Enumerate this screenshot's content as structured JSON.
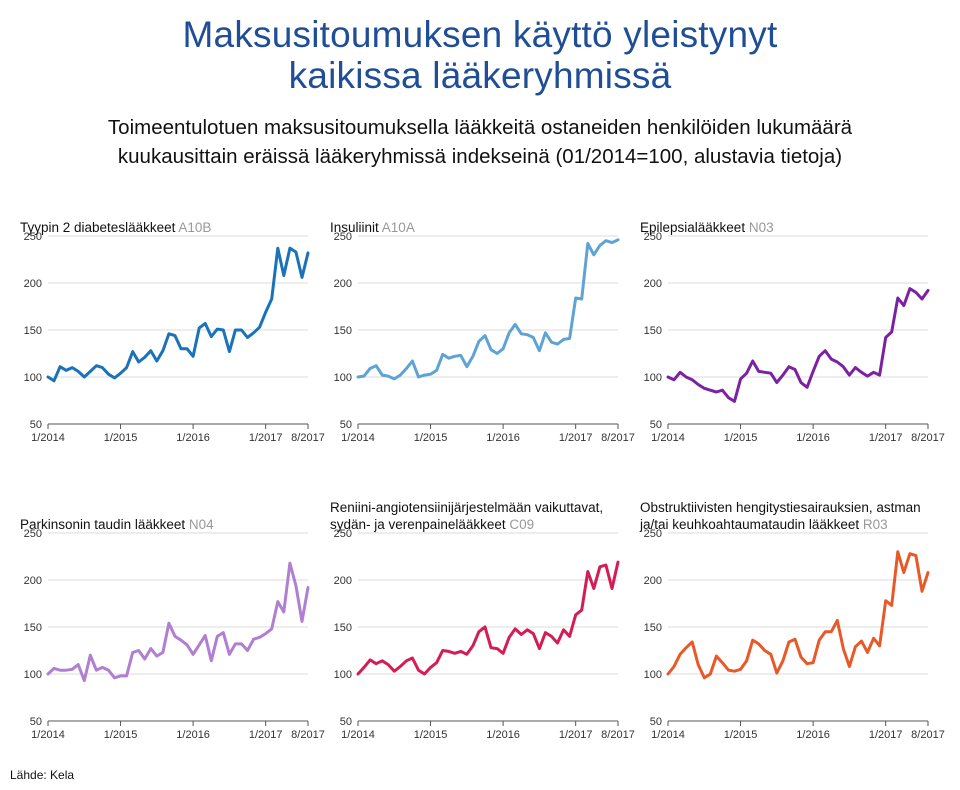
{
  "title": {
    "line1": "Maksusitoumuksen käyttö yleistynyt",
    "line2": "kaikissa lääkeryhmissä"
  },
  "subtitle": {
    "line1": "Toimeentulotuen maksusitoumuksella lääkkeitä ostaneiden henkilöiden lukumäärä",
    "line2": "kuukausittain eräissä lääkeryhmissä indekseinä (01/2014=100, alustavia tietoja)"
  },
  "source": "Lähde: Kela",
  "chart_data": [
    {
      "type": "line",
      "title": "Tyypin 2 diabeteslääkkeet",
      "code": "A10B",
      "color": "#1a72b8",
      "ylim": [
        50,
        250
      ],
      "yticks": [
        50,
        100,
        150,
        200,
        250
      ],
      "xticks": [
        "1/2014",
        "1/2015",
        "1/2016",
        "1/2017",
        "8/2017"
      ],
      "x": [
        "1/2014",
        "2/2014",
        "3/2014",
        "4/2014",
        "5/2014",
        "6/2014",
        "7/2014",
        "8/2014",
        "9/2014",
        "10/2014",
        "11/2014",
        "12/2014",
        "1/2015",
        "2/2015",
        "3/2015",
        "4/2015",
        "5/2015",
        "6/2015",
        "7/2015",
        "8/2015",
        "9/2015",
        "10/2015",
        "11/2015",
        "12/2015",
        "1/2016",
        "2/2016",
        "3/2016",
        "4/2016",
        "5/2016",
        "6/2016",
        "7/2016",
        "8/2016",
        "9/2016",
        "10/2016",
        "11/2016",
        "12/2016",
        "1/2017",
        "2/2017",
        "3/2017",
        "4/2017",
        "5/2017",
        "6/2017",
        "7/2017",
        "8/2017"
      ],
      "values": [
        100,
        96,
        111,
        107,
        110,
        106,
        100,
        106,
        112,
        110,
        103,
        99,
        104,
        110,
        127,
        116,
        121,
        128,
        117,
        128,
        146,
        144,
        130,
        130,
        122,
        152,
        157,
        143,
        151,
        150,
        127,
        150,
        150,
        142,
        147,
        153,
        169,
        183,
        237,
        208,
        237,
        233,
        206,
        232
      ]
    },
    {
      "type": "line",
      "title": "Insuliinit",
      "code": "A10A",
      "color": "#5fa3d3",
      "ylim": [
        50,
        250
      ],
      "yticks": [
        50,
        100,
        150,
        200,
        250
      ],
      "xticks": [
        "1/2014",
        "1/2015",
        "1/2016",
        "1/2017",
        "8/2017"
      ],
      "x": [
        "1/2014",
        "2/2014",
        "3/2014",
        "4/2014",
        "5/2014",
        "6/2014",
        "7/2014",
        "8/2014",
        "9/2014",
        "10/2014",
        "11/2014",
        "12/2014",
        "1/2015",
        "2/2015",
        "3/2015",
        "4/2015",
        "5/2015",
        "6/2015",
        "7/2015",
        "8/2015",
        "9/2015",
        "10/2015",
        "11/2015",
        "12/2015",
        "1/2016",
        "2/2016",
        "3/2016",
        "4/2016",
        "5/2016",
        "6/2016",
        "7/2016",
        "8/2016",
        "9/2016",
        "10/2016",
        "11/2016",
        "12/2016",
        "1/2017",
        "2/2017",
        "3/2017",
        "4/2017",
        "5/2017",
        "6/2017",
        "7/2017",
        "8/2017"
      ],
      "values": [
        100,
        101,
        109,
        112,
        102,
        101,
        98,
        102,
        109,
        117,
        100,
        102,
        103,
        107,
        124,
        120,
        122,
        123,
        111,
        122,
        138,
        144,
        129,
        125,
        130,
        147,
        156,
        146,
        145,
        142,
        128,
        147,
        137,
        135,
        140,
        141,
        184,
        183,
        242,
        230,
        240,
        245,
        243,
        246
      ]
    },
    {
      "type": "line",
      "title": "Epilepsialääkkeet",
      "code": "N03",
      "color": "#7b22a3",
      "ylim": [
        50,
        250
      ],
      "yticks": [
        50,
        100,
        150,
        200,
        250
      ],
      "xticks": [
        "1/2014",
        "1/2015",
        "1/2016",
        "1/2017",
        "8/2017"
      ],
      "x": [
        "1/2014",
        "2/2014",
        "3/2014",
        "4/2014",
        "5/2014",
        "6/2014",
        "7/2014",
        "8/2014",
        "9/2014",
        "10/2014",
        "11/2014",
        "12/2014",
        "1/2015",
        "2/2015",
        "3/2015",
        "4/2015",
        "5/2015",
        "6/2015",
        "7/2015",
        "8/2015",
        "9/2015",
        "10/2015",
        "11/2015",
        "12/2015",
        "1/2016",
        "2/2016",
        "3/2016",
        "4/2016",
        "5/2016",
        "6/2016",
        "7/2016",
        "8/2016",
        "9/2016",
        "10/2016",
        "11/2016",
        "12/2016",
        "1/2017",
        "2/2017",
        "3/2017",
        "4/2017",
        "5/2017",
        "6/2017",
        "7/2017",
        "8/2017"
      ],
      "values": [
        100,
        97,
        105,
        100,
        97,
        92,
        88,
        86,
        84,
        86,
        78,
        74,
        98,
        104,
        117,
        106,
        105,
        104,
        94,
        102,
        111,
        108,
        94,
        89,
        106,
        122,
        128,
        119,
        116,
        111,
        102,
        110,
        105,
        101,
        105,
        102,
        142,
        148,
        184,
        176,
        194,
        190,
        183,
        192
      ]
    },
    {
      "type": "line",
      "title": "Parkinsonin taudin lääkkeet",
      "code": "N04",
      "color": "#b07fd0",
      "ylim": [
        50,
        250
      ],
      "yticks": [
        50,
        100,
        150,
        200,
        250
      ],
      "xticks": [
        "1/2014",
        "1/2015",
        "1/2016",
        "1/2017",
        "8/2017"
      ],
      "x": [
        "1/2014",
        "2/2014",
        "3/2014",
        "4/2014",
        "5/2014",
        "6/2014",
        "7/2014",
        "8/2014",
        "9/2014",
        "10/2014",
        "11/2014",
        "12/2014",
        "1/2015",
        "2/2015",
        "3/2015",
        "4/2015",
        "5/2015",
        "6/2015",
        "7/2015",
        "8/2015",
        "9/2015",
        "10/2015",
        "11/2015",
        "12/2015",
        "1/2016",
        "2/2016",
        "3/2016",
        "4/2016",
        "5/2016",
        "6/2016",
        "7/2016",
        "8/2016",
        "9/2016",
        "10/2016",
        "11/2016",
        "12/2016",
        "1/2017",
        "2/2017",
        "3/2017",
        "4/2017",
        "5/2017",
        "6/2017",
        "7/2017",
        "8/2017"
      ],
      "values": [
        100,
        106,
        104,
        104,
        105,
        110,
        93,
        120,
        104,
        107,
        104,
        96,
        98,
        98,
        123,
        125,
        116,
        127,
        119,
        123,
        154,
        140,
        136,
        131,
        121,
        131,
        141,
        114,
        140,
        144,
        121,
        132,
        132,
        125,
        137,
        139,
        143,
        148,
        177,
        166,
        218,
        194,
        156,
        192
      ]
    },
    {
      "type": "line",
      "title": "Reniini-angiotensiinijärjestelmään vaikuttavat, sydän- ja verenpainelääkkeet",
      "title_lines": [
        "Reniini-angiotensiinijärjestelmään vaikuttavat,",
        "sydän- ja verenpainelääkkeet"
      ],
      "code": "C09",
      "color": "#d41c55",
      "ylim": [
        50,
        250
      ],
      "yticks": [
        50,
        100,
        150,
        200,
        250
      ],
      "xticks": [
        "1/2014",
        "1/2015",
        "1/2016",
        "1/2017",
        "8/2017"
      ],
      "x": [
        "1/2014",
        "2/2014",
        "3/2014",
        "4/2014",
        "5/2014",
        "6/2014",
        "7/2014",
        "8/2014",
        "9/2014",
        "10/2014",
        "11/2014",
        "12/2014",
        "1/2015",
        "2/2015",
        "3/2015",
        "4/2015",
        "5/2015",
        "6/2015",
        "7/2015",
        "8/2015",
        "9/2015",
        "10/2015",
        "11/2015",
        "12/2015",
        "1/2016",
        "2/2016",
        "3/2016",
        "4/2016",
        "5/2016",
        "6/2016",
        "7/2016",
        "8/2016",
        "9/2016",
        "10/2016",
        "11/2016",
        "12/2016",
        "1/2017",
        "2/2017",
        "3/2017",
        "4/2017",
        "5/2017",
        "6/2017",
        "7/2017",
        "8/2017"
      ],
      "values": [
        100,
        107,
        115,
        111,
        114,
        110,
        103,
        108,
        114,
        117,
        104,
        100,
        107,
        112,
        125,
        124,
        122,
        124,
        121,
        130,
        145,
        150,
        128,
        127,
        122,
        139,
        148,
        142,
        147,
        143,
        127,
        144,
        140,
        133,
        147,
        140,
        163,
        168,
        209,
        191,
        214,
        216,
        191,
        219
      ]
    },
    {
      "type": "line",
      "title": "Obstruktiivisten hengitystiesairauksien, astman ja/tai keuhkoahtaumataudin lääkkeet",
      "title_lines": [
        "Obstruktiivisten hengitystiesairauksien, astman",
        "ja/tai keuhkoahtaumataudin lääkkeet"
      ],
      "code": "R03",
      "color": "#e8592a",
      "ylim": [
        50,
        250
      ],
      "yticks": [
        50,
        100,
        150,
        200,
        250
      ],
      "xticks": [
        "1/2014",
        "1/2015",
        "1/2016",
        "1/2017",
        "8/2017"
      ],
      "x": [
        "1/2014",
        "2/2014",
        "3/2014",
        "4/2014",
        "5/2014",
        "6/2014",
        "7/2014",
        "8/2014",
        "9/2014",
        "10/2014",
        "11/2014",
        "12/2014",
        "1/2015",
        "2/2015",
        "3/2015",
        "4/2015",
        "5/2015",
        "6/2015",
        "7/2015",
        "8/2015",
        "9/2015",
        "10/2015",
        "11/2015",
        "12/2015",
        "1/2016",
        "2/2016",
        "3/2016",
        "4/2016",
        "5/2016",
        "6/2016",
        "7/2016",
        "8/2016",
        "9/2016",
        "10/2016",
        "11/2016",
        "12/2016",
        "1/2017",
        "2/2017",
        "3/2017",
        "4/2017",
        "5/2017",
        "6/2017",
        "7/2017",
        "8/2017"
      ],
      "values": [
        100,
        108,
        121,
        128,
        134,
        110,
        96,
        100,
        119,
        112,
        104,
        103,
        105,
        114,
        136,
        132,
        125,
        121,
        101,
        114,
        134,
        137,
        118,
        111,
        112,
        136,
        145,
        145,
        157,
        127,
        108,
        129,
        135,
        123,
        138,
        130,
        178,
        173,
        230,
        208,
        228,
        226,
        188,
        208
      ]
    }
  ]
}
